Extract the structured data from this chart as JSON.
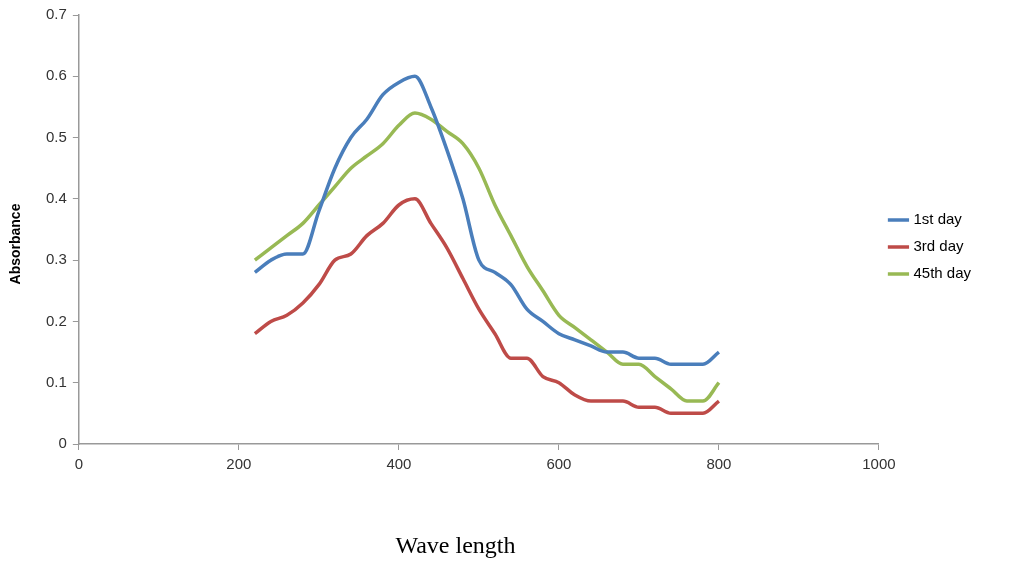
{
  "chart_data": {
    "type": "line",
    "xlabel": "Wave length",
    "ylabel": "Absorbance",
    "x": [
      220,
      240,
      260,
      280,
      300,
      320,
      340,
      360,
      380,
      400,
      420,
      440,
      460,
      480,
      500,
      520,
      540,
      560,
      580,
      600,
      620,
      640,
      660,
      680,
      700,
      720,
      740,
      760,
      780,
      800
    ],
    "series": [
      {
        "name": "1st day",
        "color": "#4a7ebb",
        "values": [
          0.28,
          0.3,
          0.31,
          0.31,
          0.38,
          0.45,
          0.5,
          0.53,
          0.57,
          0.59,
          0.6,
          0.55,
          0.48,
          0.4,
          0.3,
          0.28,
          0.26,
          0.22,
          0.2,
          0.18,
          0.17,
          0.16,
          0.15,
          0.15,
          0.14,
          0.14,
          0.13,
          0.13,
          0.13,
          0.15
        ]
      },
      {
        "name": "3rd day",
        "color": "#be4b48",
        "values": [
          0.18,
          0.2,
          0.21,
          0.23,
          0.26,
          0.3,
          0.31,
          0.34,
          0.36,
          0.39,
          0.4,
          0.36,
          0.32,
          0.27,
          0.22,
          0.18,
          0.14,
          0.14,
          0.11,
          0.1,
          0.08,
          0.07,
          0.07,
          0.07,
          0.06,
          0.06,
          0.05,
          0.05,
          0.05,
          0.07
        ]
      },
      {
        "name": "45th day",
        "color": "#98b954",
        "values": [
          0.3,
          0.32,
          0.34,
          0.36,
          0.39,
          0.42,
          0.45,
          0.47,
          0.49,
          0.52,
          0.54,
          0.53,
          0.51,
          0.49,
          0.45,
          0.39,
          0.34,
          0.29,
          0.25,
          0.21,
          0.19,
          0.17,
          0.15,
          0.13,
          0.13,
          0.11,
          0.09,
          0.07,
          0.07,
          0.1
        ]
      }
    ],
    "xlim": [
      0,
      1000
    ],
    "xticks": [
      0,
      200,
      400,
      600,
      800,
      1000
    ],
    "ylim": [
      0,
      0.7
    ],
    "yticks": [
      0,
      0.1,
      0.2,
      0.3,
      0.4,
      0.5,
      0.6,
      0.7
    ],
    "grid": false,
    "legend": "right",
    "marker": "none",
    "line_style": "solid"
  }
}
